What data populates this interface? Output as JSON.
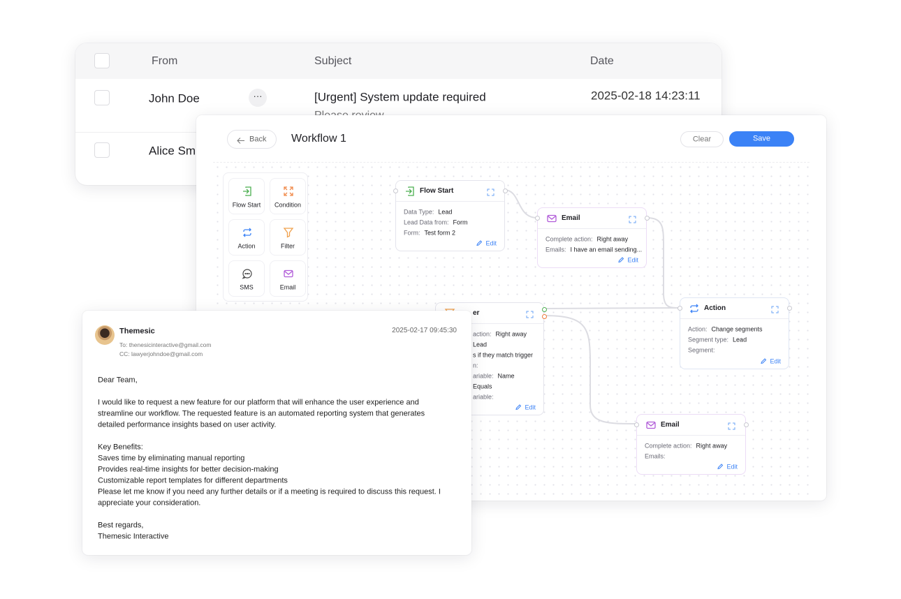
{
  "inbox": {
    "columns": [
      "From",
      "Subject",
      "Date"
    ],
    "rows": [
      {
        "from": "John Doe",
        "subject": "[Urgent] System update required",
        "preview": "Please review",
        "date": "2025-02-18 14:23:11"
      },
      {
        "from": "Alice Sm"
      }
    ]
  },
  "workflow": {
    "back": "Back",
    "title": "Workflow 1",
    "clear": "Clear",
    "save": "Save",
    "palette": [
      "Flow Start",
      "Condition",
      "Action",
      "Filter",
      "SMS",
      "Email"
    ],
    "nodes": [
      {
        "title": "Flow Start",
        "fields": [
          [
            "Data Type:",
            "Lead"
          ],
          [
            "Lead Data from:",
            "Form"
          ],
          [
            "Form:",
            "Test form 2"
          ]
        ],
        "edit": "Edit"
      },
      {
        "title": "Email",
        "fields": [
          [
            "Complete action:",
            "Right away"
          ],
          [
            "Emails:",
            "I have an email sending..."
          ]
        ],
        "edit": "Edit"
      },
      {
        "title": "er",
        "fields": [
          [
            "action:",
            "Right away"
          ],
          [
            "Lead"
          ],
          [
            "s if they match trigger"
          ],
          [
            "n:"
          ],
          [
            "ariable:",
            "Name"
          ],
          [
            "Equals"
          ],
          [
            "ariable:"
          ]
        ],
        "edit": "Edit"
      },
      {
        "title": "Action",
        "fields": [
          [
            "Action:",
            "Change segments"
          ],
          [
            "Segment type:",
            "Lead"
          ],
          [
            "Segment:"
          ]
        ],
        "edit": "Edit"
      },
      {
        "title": "Email",
        "fields": [
          [
            "Complete action:",
            "Right away"
          ],
          [
            "Emails:"
          ]
        ],
        "edit": "Edit"
      }
    ]
  },
  "email": {
    "sender": "Themesic",
    "to": "To: thenesicinteractive@gmail.com",
    "cc": "CC: lawyerjohndoe@gmail.com",
    "date": "2025-02-17 09:45:30",
    "body": [
      [
        "Dear Team,"
      ],
      [
        "I would like to request a new feature for our platform that will enhance the user experience and",
        "streamline our workflow. The requested feature is an automated reporting system that generates",
        "detailed performance insights based on user activity."
      ],
      [
        "Key Benefits:",
        "Saves time by eliminating manual reporting",
        "Provides real-time insights for better decision-making",
        "Customizable report templates for different departments",
        "Please let me know if you need any further details or if a meeting is required to discuss this request. I",
        "appreciate your consideration."
      ],
      [
        "Best regards,",
        "Themesic Interactive"
      ]
    ]
  }
}
